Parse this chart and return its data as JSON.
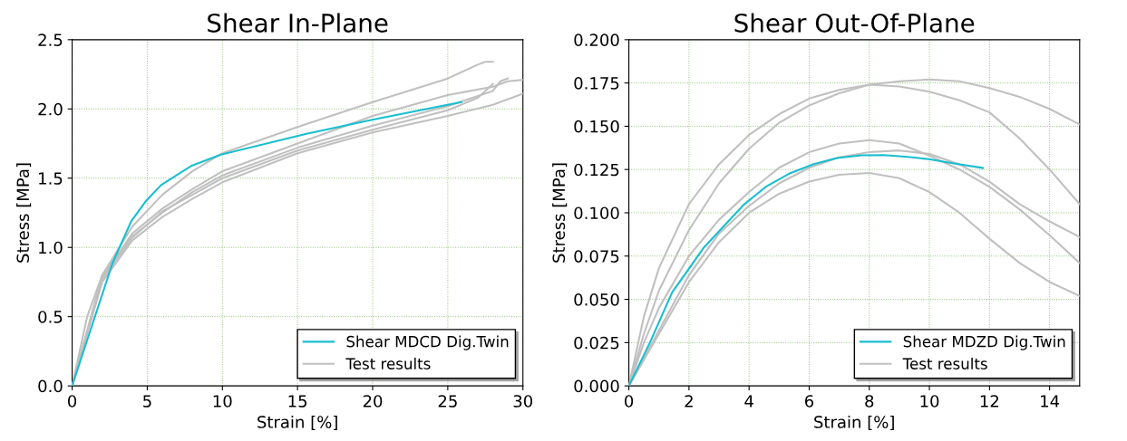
{
  "chart_data": [
    {
      "type": "line",
      "title": "Shear In-Plane",
      "xlabel": "Strain [%]",
      "ylabel": "Stress [MPa]",
      "xlim": [
        0,
        30
      ],
      "ylim": [
        0,
        2.5
      ],
      "xticks": [
        0,
        5,
        10,
        15,
        20,
        25,
        30
      ],
      "yticks": [
        {
          "value": 0,
          "label": "0.0"
        },
        {
          "value": 0.5,
          "label": "0.5"
        },
        {
          "value": 1,
          "label": "1.0"
        },
        {
          "value": 1.5,
          "label": "1.5"
        },
        {
          "value": 2,
          "label": "2.0"
        },
        {
          "value": 2.5,
          "label": "2.5"
        }
      ],
      "grid": true,
      "legend": "bottom right",
      "marker": "none",
      "line_style": "solid",
      "series": [
        {
          "name": "Shear MDCD Dig.Twin",
          "color": "#17becf",
          "x": [
            0,
            2.7,
            3.94,
            4.95,
            5.92,
            7.96,
            9.9,
            15.6,
            19.9,
            25.9
          ],
          "values": [
            0,
            0.89,
            1.19,
            1.34,
            1.45,
            1.59,
            1.67,
            1.82,
            1.92,
            2.05
          ]
        },
        {
          "name": "Test results",
          "color": "#c0c0c0",
          "x": [
            0,
            1,
            2,
            4,
            6,
            8,
            10,
            15,
            20,
            25,
            27,
            27.5,
            28
          ],
          "values": [
            0,
            0.5,
            0.8,
            1.15,
            1.38,
            1.55,
            1.68,
            1.87,
            2.05,
            2.22,
            2.32,
            2.34,
            2.34
          ]
        },
        {
          "color": "#c0c0c0",
          "x": [
            0,
            2,
            4,
            6,
            8,
            10,
            15,
            20,
            25,
            28,
            29,
            30
          ],
          "values": [
            0,
            0.78,
            1.1,
            1.28,
            1.42,
            1.55,
            1.75,
            1.95,
            2.1,
            2.16,
            2.2,
            2.21
          ]
        },
        {
          "color": "#c0c0c0",
          "x": [
            0,
            2,
            4,
            6,
            8,
            10,
            15,
            20,
            25,
            28,
            28.5,
            29
          ],
          "values": [
            0,
            0.8,
            1.08,
            1.25,
            1.4,
            1.52,
            1.72,
            1.88,
            2.02,
            2.13,
            2.2,
            2.22
          ]
        },
        {
          "color": "#c0c0c0",
          "x": [
            0,
            2,
            4,
            6,
            8,
            10,
            15,
            20,
            25,
            28,
            30
          ],
          "values": [
            0,
            0.75,
            1.05,
            1.22,
            1.35,
            1.47,
            1.68,
            1.83,
            1.95,
            2.03,
            2.11
          ]
        },
        {
          "color": "#c0c0c0",
          "x": [
            0,
            2,
            4,
            6,
            8,
            10,
            15,
            20,
            25,
            27,
            28
          ],
          "values": [
            0,
            0.77,
            1.07,
            1.26,
            1.38,
            1.5,
            1.7,
            1.85,
            1.99,
            2.08,
            2.18
          ]
        }
      ]
    },
    {
      "type": "line",
      "title": "Shear Out-Of-Plane",
      "xlabel": "Strain [%]",
      "ylabel": "Stress [MPa]",
      "xlim": [
        0,
        15
      ],
      "ylim": [
        0,
        0.2
      ],
      "xticks": [
        0,
        2,
        4,
        6,
        8,
        10,
        12,
        14
      ],
      "yticks": [
        {
          "value": 0,
          "label": "0.000"
        },
        {
          "value": 0.025,
          "label": "0.025"
        },
        {
          "value": 0.05,
          "label": "0.050"
        },
        {
          "value": 0.075,
          "label": "0.075"
        },
        {
          "value": 0.1,
          "label": "0.100"
        },
        {
          "value": 0.125,
          "label": "0.125"
        },
        {
          "value": 0.15,
          "label": "0.150"
        },
        {
          "value": 0.175,
          "label": "0.175"
        },
        {
          "value": 0.2,
          "label": "0.200"
        }
      ],
      "grid": true,
      "legend": "bottom right",
      "marker": "none",
      "line_style": "solid",
      "series": [
        {
          "name": "Shear MDZD Dig.Twin",
          "color": "#17becf",
          "x": [
            0,
            0.7,
            1.44,
            2.5,
            3.82,
            4.59,
            5.37,
            6.15,
            6.92,
            7.75,
            8.48,
            9.2,
            9.98,
            10.86,
            11.78
          ],
          "values": [
            0,
            0.025,
            0.054,
            0.08,
            0.1046,
            0.1154,
            0.1229,
            0.1281,
            0.1316,
            0.1332,
            0.1333,
            0.1324,
            0.131,
            0.1284,
            0.1259
          ]
        },
        {
          "name": "Test results",
          "color": "#c0c0c0",
          "x": [
            0,
            0.5,
            1,
            2,
            3,
            4,
            5,
            6,
            7,
            8,
            9,
            10,
            11,
            12,
            13,
            14,
            15
          ],
          "values": [
            0,
            0.03,
            0.055,
            0.09,
            0.117,
            0.137,
            0.152,
            0.162,
            0.169,
            0.174,
            0.176,
            0.177,
            0.176,
            0.172,
            0.167,
            0.16,
            0.151
          ]
        },
        {
          "color": "#c0c0c0",
          "x": [
            0,
            0.5,
            1,
            2,
            3,
            4,
            5,
            6,
            7,
            8,
            9,
            10,
            11,
            12,
            13,
            14,
            15
          ],
          "values": [
            0,
            0.04,
            0.068,
            0.105,
            0.128,
            0.145,
            0.157,
            0.166,
            0.171,
            0.174,
            0.173,
            0.17,
            0.165,
            0.158,
            0.143,
            0.125,
            0.105
          ]
        },
        {
          "color": "#c0c0c0",
          "x": [
            0,
            0.5,
            1,
            2,
            3,
            4,
            5,
            6,
            7,
            8,
            9,
            10,
            11,
            12,
            13,
            14,
            15
          ],
          "values": [
            0,
            0.025,
            0.045,
            0.075,
            0.096,
            0.112,
            0.126,
            0.135,
            0.14,
            0.142,
            0.14,
            0.133,
            0.125,
            0.115,
            0.102,
            0.087,
            0.071
          ]
        },
        {
          "color": "#c0c0c0",
          "x": [
            0,
            1,
            2,
            3,
            4,
            5,
            6,
            7,
            8,
            9,
            10,
            11,
            12,
            13,
            14,
            15
          ],
          "values": [
            0,
            0.032,
            0.064,
            0.088,
            0.104,
            0.117,
            0.126,
            0.132,
            0.135,
            0.136,
            0.134,
            0.128,
            0.118,
            0.105,
            0.095,
            0.086
          ]
        },
        {
          "color": "#c0c0c0",
          "x": [
            0,
            1,
            2,
            3,
            4,
            5,
            6,
            7,
            8,
            9,
            10,
            11,
            12,
            13,
            14,
            15
          ],
          "values": [
            0,
            0.03,
            0.06,
            0.083,
            0.1,
            0.111,
            0.118,
            0.122,
            0.123,
            0.12,
            0.112,
            0.1,
            0.085,
            0.071,
            0.06,
            0.052
          ]
        }
      ]
    }
  ]
}
